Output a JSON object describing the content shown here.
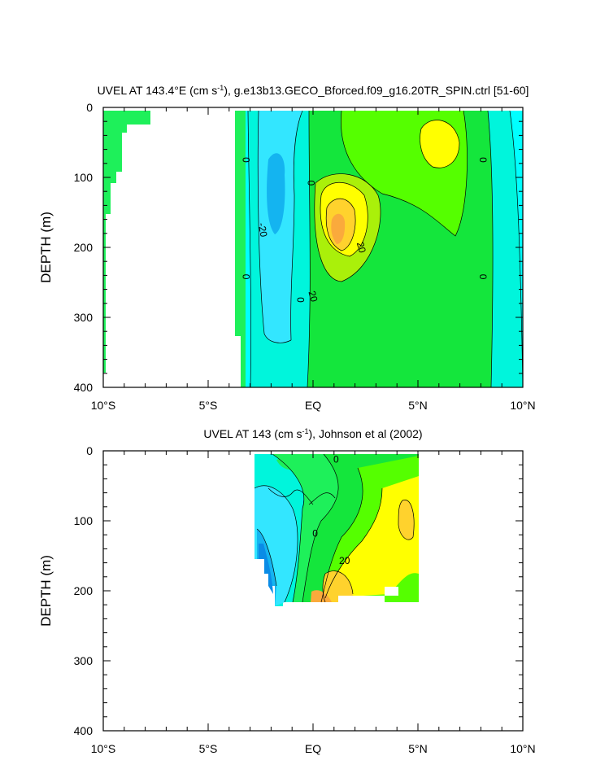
{
  "figure": {
    "colors": {
      "cyan": "#00FFFF",
      "aqua": "#00F5DC",
      "sky": "#33E6FF",
      "blue": "#14B4F0",
      "deep_blue": "#0A8CE6",
      "green_light": "#1EF05A",
      "green": "#14E63C",
      "lime": "#55FF00",
      "yellow_green": "#AAF00A",
      "yellow": "#FFFF00",
      "gold": "#FFD22D",
      "orange": "#FAAA3C"
    },
    "x_ticks": [
      "10°S",
      "5°S",
      "EQ",
      "5°N",
      "10°N"
    ]
  },
  "chart_data": [
    {
      "type": "contour",
      "title": "UVEL AT 143.4°E (cm s-1), g.e13b13.GECO_Bforced.f09_g16.20TR_SPIN.ctrl [51-60]",
      "ylabel": "DEPTH (m)",
      "y_ticks": [
        "0",
        "100",
        "200",
        "300",
        "400"
      ],
      "xlim": [
        -10,
        10
      ],
      "ylim": [
        400,
        0
      ],
      "contour_labels": [
        {
          "text": "0",
          "x": -3.2,
          "y": 75
        },
        {
          "text": "0",
          "x": -0.1,
          "y": 108
        },
        {
          "text": "-20",
          "x": -2.4,
          "y": 175
        },
        {
          "text": "20",
          "x": 2.3,
          "y": 200
        },
        {
          "text": "0",
          "x": -3.2,
          "y": 242
        },
        {
          "text": "0",
          "x": -0.6,
          "y": 275
        },
        {
          "text": "20",
          "x": 0.0,
          "y": 270
        },
        {
          "text": "0",
          "x": 8.1,
          "y": 75
        },
        {
          "text": "0",
          "x": 8.1,
          "y": 242
        }
      ]
    },
    {
      "type": "contour",
      "title": "UVEL AT 143 (cm s-1), Johnson et al (2002)",
      "ylabel": "DEPTH (m)",
      "y_ticks": [
        "0",
        "100",
        "200",
        "300",
        "400"
      ],
      "xlim": [
        -10,
        10
      ],
      "ylim": [
        400,
        0
      ],
      "contour_labels": [
        {
          "text": "0",
          "x": 1.1,
          "y": 12
        },
        {
          "text": "0",
          "x": 0.1,
          "y": 118
        },
        {
          "text": "20",
          "x": 1.5,
          "y": 157
        }
      ]
    }
  ]
}
